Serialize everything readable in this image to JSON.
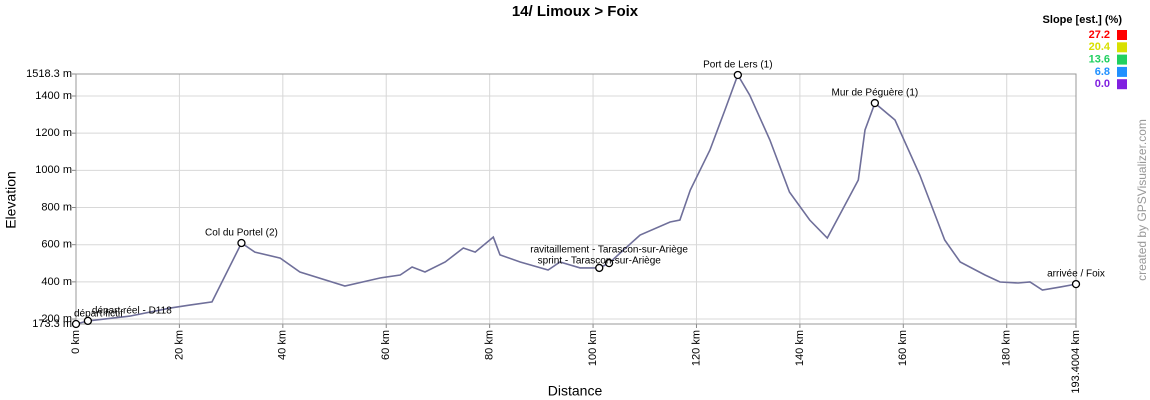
{
  "chart_data": {
    "type": "line",
    "title": "14/ Limoux > Foix",
    "x_label": "Distance",
    "y_label": "Elevation",
    "credit": "created by GPSVisualizer.com",
    "xlim": [
      0,
      193.4004
    ],
    "ylim": [
      173.3,
      1518.3
    ],
    "grid": true,
    "xticks": [
      {
        "value": 0,
        "label": "0 km"
      },
      {
        "value": 20,
        "label": "20 km"
      },
      {
        "value": 40,
        "label": "40 km"
      },
      {
        "value": 60,
        "label": "60 km"
      },
      {
        "value": 80,
        "label": "80 km"
      },
      {
        "value": 100,
        "label": "100 km"
      },
      {
        "value": 120,
        "label": "120 km"
      },
      {
        "value": 140,
        "label": "140 km"
      },
      {
        "value": 160,
        "label": "160 km"
      },
      {
        "value": 180,
        "label": "180 km"
      },
      {
        "value": 193.4004,
        "label": "193.4004 km"
      }
    ],
    "yticks": [
      {
        "value": 173.3,
        "label": "173.3 m"
      },
      {
        "value": 200,
        "label": "200 m"
      },
      {
        "value": 400,
        "label": "400 m"
      },
      {
        "value": 600,
        "label": "600 m"
      },
      {
        "value": 800,
        "label": "800 m"
      },
      {
        "value": 1000,
        "label": "1000 m"
      },
      {
        "value": 1200,
        "label": "1200 m"
      },
      {
        "value": 1400,
        "label": "1400 m"
      },
      {
        "value": 1518.3,
        "label": "1518.3 m"
      }
    ],
    "series": [
      {
        "color": "#6f6f9a",
        "x": [
          0,
          2.3,
          10.4,
          18.2,
          22,
          26.3,
          32,
          34.6,
          39.5,
          43.3,
          52,
          58.8,
          62.7,
          65,
          67.5,
          71.4,
          74.9,
          77.2,
          80.7,
          82,
          85.9,
          91.3,
          93.6,
          97.5,
          101.2,
          103.1,
          109.1,
          114.9,
          116.8,
          118.8,
          122.6,
          125.5,
          128,
          130.3,
          134.2,
          138,
          141.9,
          145.3,
          148.7,
          151.3,
          152.6,
          154.5,
          158.4,
          163.2,
          168,
          171,
          175.8,
          178.7,
          182.2,
          184.5,
          186.9,
          190.3,
          193.4004
        ],
        "values": [
          173.3,
          190,
          216,
          259,
          275,
          292,
          609,
          560,
          528,
          453,
          378,
          421,
          437,
          480,
          453,
          507,
          582,
          560,
          641,
          545,
          507,
          464,
          507,
          475,
          475,
          501,
          652,
          722,
          733,
          894,
          1109,
          1324,
          1513,
          1405,
          1163,
          883,
          733,
          636,
          813,
          948,
          1217,
          1362,
          1271,
          975,
          625,
          507,
          437,
          399,
          394,
          399,
          356,
          372,
          388
        ]
      }
    ],
    "markers": [
      {
        "label": "départ fictif",
        "x": 0,
        "y": 173.3
      },
      {
        "label": "départ réel - D118",
        "x": 2.3,
        "y": 190
      },
      {
        "label": "Col du Portel (2)",
        "x": 32,
        "y": 609
      },
      {
        "label": "ravitaillement - Tarascon-sur-Ariège",
        "x": 103.1,
        "y": 501
      },
      {
        "label": "sprint - Tarascon-sur-Ariège",
        "x": 101.2,
        "y": 475
      },
      {
        "label": "Port de Lers (1)",
        "x": 128,
        "y": 1513
      },
      {
        "label": "Mur de Péguère (1)",
        "x": 154.5,
        "y": 1362
      },
      {
        "label": "arrivée / Foix",
        "x": 193.4004,
        "y": 388
      }
    ],
    "slope_legend": {
      "title": "Slope [est.] (%)",
      "values": [
        27.2,
        20.4,
        13.6,
        6.8,
        {
          "value": 0,
          "label": "0.0"
        }
      ],
      "colors": [
        "#ff0000",
        "#d8e000",
        "#20d060",
        "#2090ff",
        "#8020e0"
      ]
    }
  }
}
